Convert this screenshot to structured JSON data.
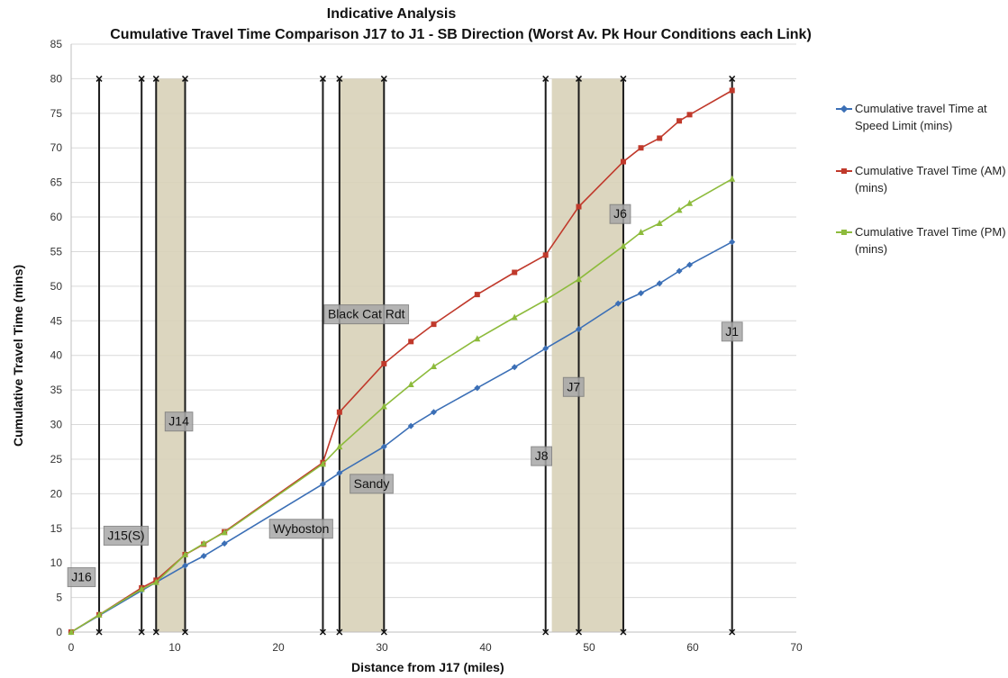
{
  "title_line1": "Indicative Analysis",
  "title_line2": "Cumulative Travel Time  Comparison J17 to J1 - SB  Direction (Worst Av. Pk Hour Conditions each Link)",
  "chart_data": {
    "type": "line",
    "title": "Indicative Analysis\nCumulative Travel Time  Comparison J17 to J1 - SB  Direction (Worst Av. Pk Hour Conditions each Link)",
    "xlabel": "Distance from J17 (miles)",
    "ylabel": "Cumulative Travel Time (mins)",
    "xlim": [
      0,
      70
    ],
    "ylim": [
      0,
      85
    ],
    "xticks": [
      0,
      10,
      20,
      30,
      40,
      50,
      60,
      70
    ],
    "yticks": [
      0,
      5,
      10,
      15,
      20,
      25,
      30,
      35,
      40,
      45,
      50,
      55,
      60,
      65,
      70,
      75,
      80,
      85
    ],
    "grid": "horizontal",
    "legend_position": "right",
    "series": [
      {
        "name": "Cumulative travel Time at Speed Limit (mins)",
        "color": "#3b6fb6",
        "marker": "diamond",
        "points": [
          [
            0,
            0
          ],
          [
            2.7,
            2.4
          ],
          [
            6.8,
            6.0
          ],
          [
            8.2,
            7.2
          ],
          [
            11.0,
            9.6
          ],
          [
            12.8,
            11.0
          ],
          [
            14.8,
            12.8
          ],
          [
            24.3,
            21.4
          ],
          [
            25.9,
            23.0
          ],
          [
            30.2,
            26.8
          ],
          [
            32.8,
            29.8
          ],
          [
            35.0,
            31.8
          ],
          [
            39.2,
            35.3
          ],
          [
            42.8,
            38.3
          ],
          [
            45.8,
            41.0
          ],
          [
            49.0,
            43.8
          ],
          [
            52.8,
            47.5
          ],
          [
            55.0,
            49.0
          ],
          [
            56.8,
            50.4
          ],
          [
            58.7,
            52.2
          ],
          [
            59.7,
            53.1
          ],
          [
            63.8,
            56.4
          ]
        ]
      },
      {
        "name": "Cumulative Travel Time (AM) (mins)",
        "color": "#c0392b",
        "marker": "square",
        "points": [
          [
            0,
            0
          ],
          [
            2.7,
            2.5
          ],
          [
            6.8,
            6.4
          ],
          [
            8.2,
            7.5
          ],
          [
            11.0,
            11.2
          ],
          [
            12.8,
            12.7
          ],
          [
            14.8,
            14.5
          ],
          [
            24.3,
            24.5
          ],
          [
            25.9,
            31.8
          ],
          [
            30.2,
            38.8
          ],
          [
            32.8,
            42.0
          ],
          [
            35.0,
            44.5
          ],
          [
            39.2,
            48.8
          ],
          [
            42.8,
            52.0
          ],
          [
            45.8,
            54.5
          ],
          [
            49.0,
            61.5
          ],
          [
            53.3,
            68.0
          ],
          [
            55.0,
            70.0
          ],
          [
            56.8,
            71.4
          ],
          [
            58.7,
            73.9
          ],
          [
            59.7,
            74.8
          ],
          [
            63.8,
            78.3
          ]
        ]
      },
      {
        "name": "Cumulative Travel Time (PM) (mins)",
        "color": "#8dbb3c",
        "marker": "triangle",
        "points": [
          [
            0,
            0
          ],
          [
            2.7,
            2.5
          ],
          [
            6.8,
            6.2
          ],
          [
            8.2,
            7.2
          ],
          [
            11.0,
            11.2
          ],
          [
            12.8,
            12.8
          ],
          [
            14.8,
            14.4
          ],
          [
            24.3,
            24.3
          ],
          [
            25.9,
            26.8
          ],
          [
            30.2,
            32.6
          ],
          [
            32.8,
            35.8
          ],
          [
            35.0,
            38.4
          ],
          [
            39.2,
            42.4
          ],
          [
            42.8,
            45.5
          ],
          [
            45.8,
            48.0
          ],
          [
            49.0,
            51.0
          ],
          [
            53.3,
            55.8
          ],
          [
            55.0,
            57.8
          ],
          [
            56.8,
            59.1
          ],
          [
            58.7,
            61.0
          ],
          [
            59.7,
            62.0
          ],
          [
            63.8,
            65.5
          ]
        ]
      }
    ],
    "shaded_bands": [
      [
        8.2,
        11.0
      ],
      [
        25.9,
        30.2
      ],
      [
        46.4,
        53.3
      ]
    ],
    "vertical_lines": [
      2.7,
      6.8,
      8.2,
      11.0,
      24.3,
      25.9,
      30.2,
      45.8,
      49.0,
      53.3,
      63.8
    ],
    "annotations": [
      {
        "text": "J16",
        "x": 1.0,
        "y": 8.0
      },
      {
        "text": "J15(S)",
        "x": 5.3,
        "y": 14.0
      },
      {
        "text": "J14",
        "x": 10.4,
        "y": 30.5
      },
      {
        "text": "Wyboston",
        "x": 22.2,
        "y": 15.0
      },
      {
        "text": "Black Cat Rdt",
        "x": 28.5,
        "y": 46.0
      },
      {
        "text": "Sandy",
        "x": 29.0,
        "y": 21.5
      },
      {
        "text": "J8",
        "x": 45.4,
        "y": 25.5
      },
      {
        "text": "J7",
        "x": 48.5,
        "y": 35.5
      },
      {
        "text": "J6",
        "x": 53.0,
        "y": 60.5
      },
      {
        "text": "J1",
        "x": 63.8,
        "y": 43.5
      }
    ]
  }
}
